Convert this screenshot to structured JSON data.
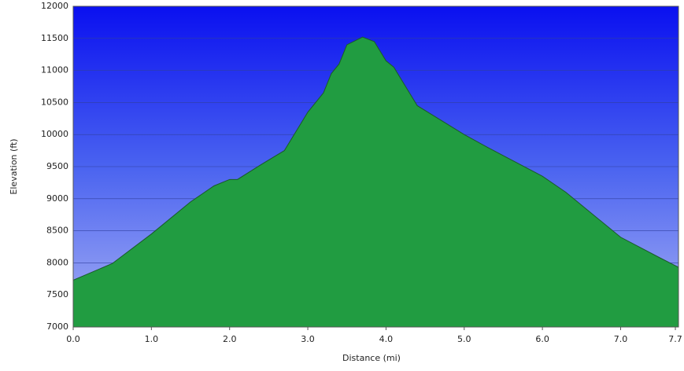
{
  "chart_data": {
    "type": "area",
    "x_label": "Distance   (mi)",
    "y_label": "Elevation (ft)",
    "x": [
      0,
      0.5,
      1.0,
      1.5,
      1.8,
      2.0,
      2.1,
      2.4,
      2.7,
      2.9,
      3.0,
      3.2,
      3.3,
      3.4,
      3.5,
      3.7,
      3.85,
      4.0,
      4.1,
      4.2,
      4.4,
      4.6,
      5.0,
      5.3,
      6.0,
      6.3,
      7.0,
      7.5,
      7.74
    ],
    "series": [
      {
        "name": "Elevation",
        "color": "#22a845",
        "values": [
          7730,
          7990,
          8450,
          8950,
          9200,
          9300,
          9300,
          9530,
          9750,
          10150,
          10350,
          10650,
          10950,
          11100,
          11400,
          11520,
          11450,
          11150,
          11050,
          10850,
          10450,
          10300,
          10000,
          9800,
          9350,
          9100,
          8400,
          8080,
          7930
        ]
      }
    ],
    "xlim": [
      0,
      7.74
    ],
    "xticks": [
      {
        "value": 0,
        "label": "0.0"
      },
      {
        "value": 1,
        "label": "1.0"
      },
      {
        "value": 2,
        "label": "2.0"
      },
      {
        "value": 3,
        "label": "3.0"
      },
      {
        "value": 4,
        "label": "4.0"
      },
      {
        "value": 5,
        "label": "5.0"
      },
      {
        "value": 6,
        "label": "6.0"
      },
      {
        "value": 7,
        "label": "7.0"
      },
      7.7
    ],
    "ylim": [
      7000,
      12000
    ],
    "yticks": [
      7000,
      7500,
      8000,
      8500,
      9000,
      9500,
      10000,
      10500,
      11000,
      11500,
      12000
    ],
    "grid": true
  }
}
